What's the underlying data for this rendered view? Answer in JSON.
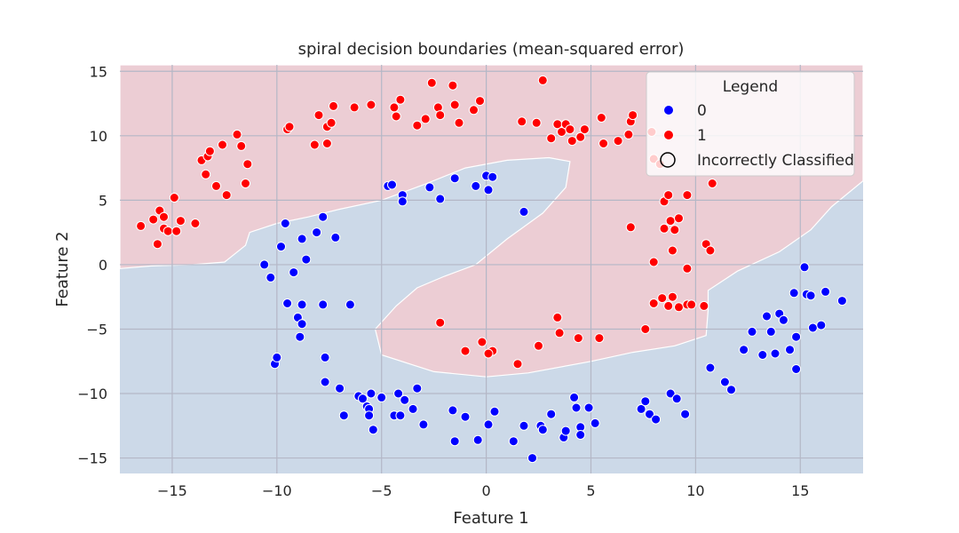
{
  "chart_data": {
    "type": "scatter",
    "title": "spiral decision boundaries (mean-squared error)",
    "xlabel": "Feature 1",
    "ylabel": "Feature 2",
    "xlim": [
      -17.5,
      18
    ],
    "ylim": [
      -16.2,
      15.5
    ],
    "xticks": [
      -15,
      -10,
      -5,
      0,
      5,
      10,
      15
    ],
    "yticks": [
      -15,
      -10,
      -5,
      0,
      5,
      10,
      15
    ],
    "xtick_labels": [
      "−15",
      "−10",
      "−5",
      "0",
      "5",
      "10",
      "15"
    ],
    "ytick_labels": [
      "−15",
      "−10",
      "−5",
      "0",
      "5",
      "10",
      "15"
    ],
    "grid": true,
    "legend": {
      "title": "Legend",
      "position": "top-right",
      "entries": [
        {
          "label": "0",
          "marker": "filled-dot",
          "color": "#0000ff"
        },
        {
          "label": "1",
          "marker": "filled-dot",
          "color": "#ff0000"
        },
        {
          "label": "Incorrectly Classified",
          "marker": "hollow-circle",
          "color": "#000000"
        }
      ]
    },
    "colors": {
      "class0": "#0000ff",
      "class1": "#ff0000",
      "region0": "#ccd9e8",
      "region1": "#eccdd4",
      "plot_background": "#eaeaf2",
      "grid": "#b4b7c6"
    },
    "decision_region_class1": [
      [
        -17.5,
        -0.3
      ],
      [
        -16,
        -0.1
      ],
      [
        -14,
        0
      ],
      [
        -12.5,
        0.2
      ],
      [
        -11.5,
        1.5
      ],
      [
        -11.3,
        2.5
      ],
      [
        -10,
        3.2
      ],
      [
        -8.5,
        3.7
      ],
      [
        -7,
        4.3
      ],
      [
        -5,
        5.0
      ],
      [
        -3,
        6.2
      ],
      [
        -1,
        7.5
      ],
      [
        1,
        8.1
      ],
      [
        3,
        8.3
      ],
      [
        4,
        8.0
      ],
      [
        3.8,
        6.0
      ],
      [
        2.7,
        4.0
      ],
      [
        1,
        2.0
      ],
      [
        -0.5,
        0
      ],
      [
        -2,
        -0.9
      ],
      [
        -3.3,
        -1.8
      ],
      [
        -4.3,
        -3.2
      ],
      [
        -5.3,
        -5.0
      ],
      [
        -5,
        -7.0
      ],
      [
        -2.5,
        -8.3
      ],
      [
        0,
        -8.7
      ],
      [
        2,
        -8.4
      ],
      [
        5,
        -7.5
      ],
      [
        7,
        -6.8
      ],
      [
        9,
        -6.3
      ],
      [
        10.5,
        -5.5
      ],
      [
        10.6,
        -3.5
      ],
      [
        10.6,
        -2.0
      ],
      [
        12,
        -0.5
      ],
      [
        14,
        1.0
      ],
      [
        15.5,
        2.7
      ],
      [
        16.5,
        4.5
      ],
      [
        18,
        6.5
      ],
      [
        18,
        15.5
      ],
      [
        -17.5,
        15.5
      ]
    ],
    "series": [
      {
        "name": "0",
        "x": [
          -10.6,
          -10.3,
          -9.8,
          -9.6,
          -9.2,
          -8.8,
          -8.6,
          -8.1,
          -7.8,
          -7.2,
          -9.5,
          -8.8,
          -7.8,
          -6.5,
          -10.1,
          -10,
          -9.0,
          -8.8,
          -8.9,
          -7.7,
          -7.7,
          -7.0,
          -6.8,
          -6.1,
          -5.9,
          -5.7,
          -5.6,
          -5.5,
          -5.4,
          -5.6,
          -5.0,
          -4.2,
          -3.9,
          -3.5,
          -4.4,
          -4.1,
          -3.3,
          -3.0,
          -1.6,
          -1.5,
          -1.0,
          -0.4,
          0.1,
          0.4,
          1.3,
          1.8,
          2.2,
          2.6,
          2.7,
          3.1,
          3.7,
          3.8,
          4.2,
          4.3,
          4.5,
          4.5,
          4.9,
          5.2,
          7.4,
          7.6,
          7.8,
          8.1,
          8.8,
          9.1,
          9.5,
          10.7,
          11.4,
          11.7,
          12.3,
          12.7,
          13.2,
          13.4,
          13.6,
          13.8,
          14.0,
          14.2,
          14.5,
          14.7,
          14.8,
          14.8,
          15.2,
          15.3,
          15.5,
          15.6,
          16.0,
          16.2,
          17.0,
          -4.7,
          -4.5,
          -4.0,
          -4.0,
          -2.7,
          -2.2,
          -1.5,
          -0.5,
          0,
          0.3,
          0.1,
          1.8
        ],
        "y": [
          0,
          -1,
          1.4,
          3.2,
          -0.6,
          2,
          0.4,
          2.5,
          3.7,
          2.1,
          -3.0,
          -3.1,
          -3.1,
          -3.1,
          -7.7,
          -7.2,
          -4.1,
          -4.6,
          -5.6,
          -7.2,
          -9.1,
          -9.6,
          -11.7,
          -10.2,
          -10.4,
          -11.0,
          -11.2,
          -10.0,
          -12.8,
          -11.7,
          -10.3,
          -10.0,
          -10.5,
          -11.2,
          -11.7,
          -11.7,
          -9.6,
          -12.4,
          -11.3,
          -13.7,
          -11.8,
          -13.6,
          -12.4,
          -11.4,
          -13.7,
          -12.5,
          -15.0,
          -12.5,
          -12.8,
          -11.6,
          -13.4,
          -12.9,
          -10.3,
          -11.1,
          -12.6,
          -13.2,
          -11.1,
          -12.3,
          -11.2,
          -10.6,
          -11.6,
          -12.0,
          -10.0,
          -10.4,
          -11.6,
          -8.0,
          -9.1,
          -9.7,
          -6.6,
          -5.2,
          -7.0,
          -4.0,
          -5.2,
          -6.9,
          -3.8,
          -4.3,
          -6.6,
          -2.2,
          -5.6,
          -8.1,
          -0.2,
          -2.3,
          -2.4,
          -4.9,
          -4.7,
          -2.1,
          -2.8,
          6.1,
          6.2,
          5.4,
          4.9,
          6.0,
          5.1,
          6.7,
          6.1,
          6.9,
          6.8,
          5.8,
          4.1
        ]
      },
      {
        "name": "1",
        "x": [
          -16.5,
          -15.9,
          -15.7,
          -15.6,
          -15.4,
          -15.4,
          -15.2,
          -14.9,
          -14.8,
          -14.6,
          -13.9,
          -13.6,
          -13.4,
          -13.3,
          -13.2,
          -12.9,
          -12.6,
          -12.4,
          -11.9,
          -11.7,
          -11.5,
          -11.4,
          -9.5,
          -9.4,
          -8.2,
          -8.0,
          -7.6,
          -7.6,
          -7.4,
          -7.3,
          -6.3,
          -5.5,
          -4.4,
          -4.1,
          -4.3,
          -3.3,
          -2.9,
          -2.6,
          -2.3,
          -2.2,
          -1.6,
          -1.5,
          -1.3,
          -0.6,
          -0.3,
          1.7,
          2.4,
          2.7,
          3.1,
          3.4,
          3.6,
          3.8,
          4.0,
          4.1,
          4.5,
          4.7,
          5.5,
          5.6,
          6.3,
          6.8,
          6.9,
          7.0,
          7.9,
          8.0,
          8.3,
          8.5,
          8.7,
          8.8,
          9.0,
          9.2,
          9.6,
          9.6,
          10.5,
          10.7,
          10.8,
          6.9,
          8.5,
          8.9,
          8.0,
          8.4,
          8.7,
          8.9,
          9.2,
          9.6,
          9.8,
          10.4,
          3.4,
          3.5,
          4.4,
          5.4,
          2.5,
          1.5,
          0.3,
          0.1,
          -0.2,
          -1.0,
          -2.2,
          7.6,
          8.0
        ],
        "y": [
          3.0,
          3.5,
          1.6,
          4.2,
          3.7,
          2.8,
          2.6,
          5.2,
          2.6,
          3.4,
          3.2,
          8.1,
          7.0,
          8.4,
          8.8,
          6.1,
          9.3,
          5.4,
          10.1,
          9.2,
          6.3,
          7.8,
          10.5,
          10.7,
          9.3,
          11.6,
          10.7,
          9.4,
          11.0,
          12.3,
          12.2,
          12.4,
          12.2,
          12.8,
          11.5,
          10.8,
          11.3,
          14.1,
          12.2,
          11.6,
          13.9,
          12.4,
          11.0,
          12.0,
          12.7,
          11.1,
          11.0,
          14.3,
          9.8,
          10.9,
          10.3,
          10.9,
          10.5,
          9.6,
          9.9,
          10.5,
          11.4,
          9.4,
          9.6,
          10.1,
          11.1,
          11.6,
          10.3,
          8.2,
          7.8,
          4.9,
          5.4,
          3.4,
          2.7,
          3.6,
          5.4,
          -0.3,
          1.6,
          1.1,
          6.3,
          2.9,
          2.8,
          1.1,
          0.2,
          -2.6,
          -3.2,
          -2.5,
          -3.3,
          -3.1,
          -3.1,
          -3.2,
          -4.1,
          -5.3,
          -5.7,
          -5.7,
          -6.3,
          -7.7,
          -6.7,
          -6.9,
          -6.0,
          -6.7,
          -4.5,
          -5.0,
          -3.0
        ]
      }
    ]
  }
}
